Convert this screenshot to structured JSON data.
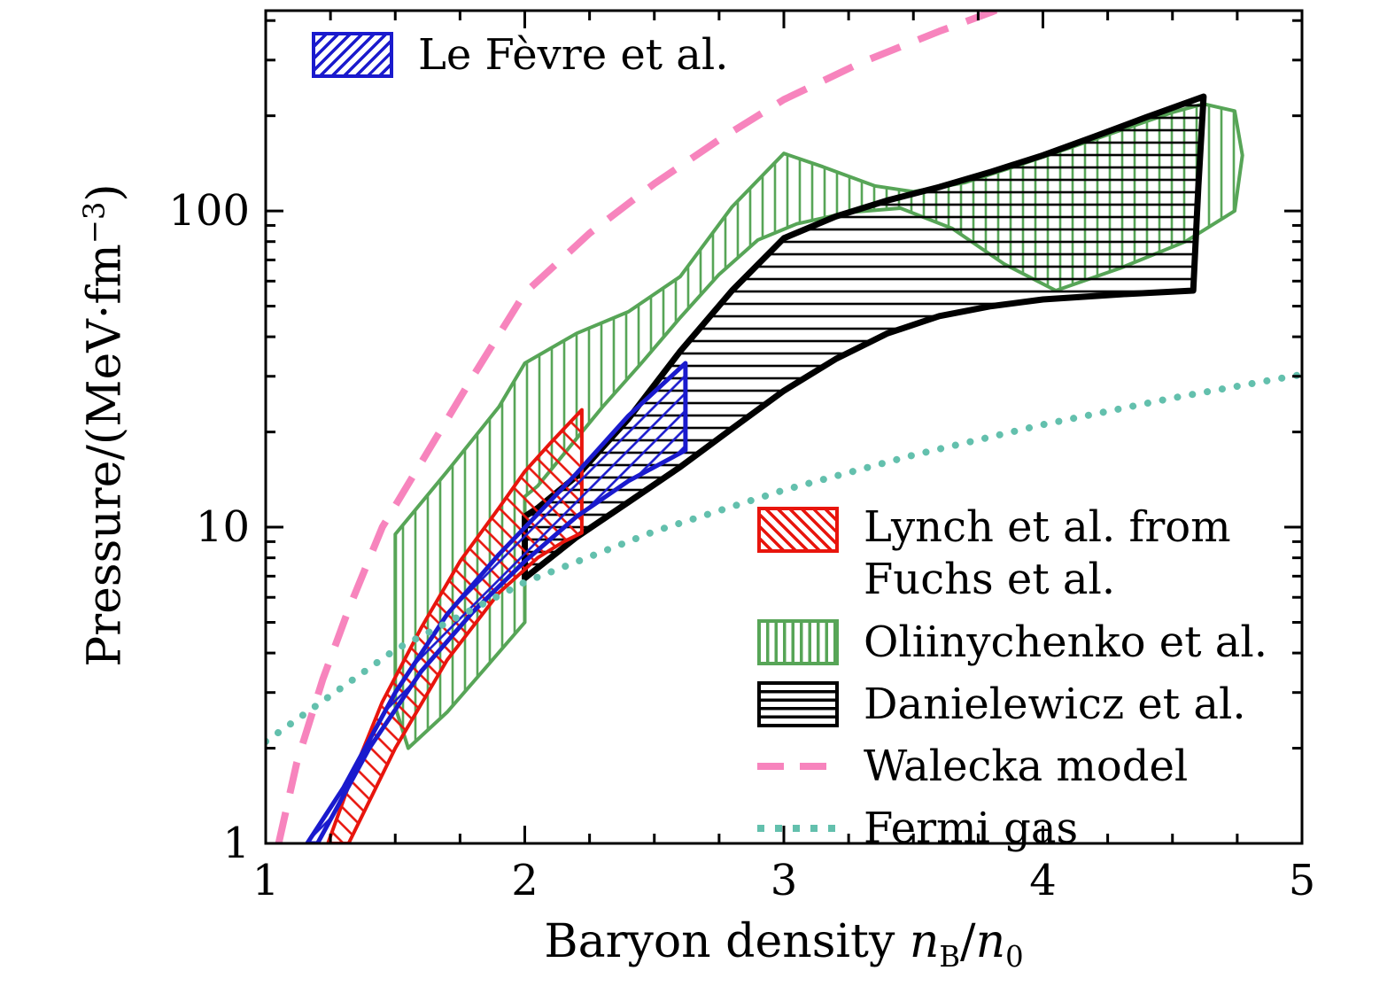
{
  "figure": {
    "background": "#ffffff"
  },
  "axes": {
    "x": {
      "label_parts": {
        "prefix": "Baryon density ",
        "v1": "n",
        "s1": "B",
        "sep": "/",
        "v2": "n",
        "s2": "0"
      },
      "min": 1,
      "max": 5,
      "major_ticks": [
        1,
        2,
        3,
        4,
        5
      ],
      "minor_step": 0.25
    },
    "y": {
      "label_parts": {
        "prefix": "Pressure/(MeV·fm",
        "sup": "−3",
        "suffix": ")"
      },
      "min": 1,
      "max": 430,
      "scale": "log",
      "major_ticks": [
        1,
        10,
        100
      ]
    }
  },
  "chart_data": {
    "type": "area",
    "title": "",
    "xlabel": "Baryon density nB/n0",
    "ylabel": "Pressure/(MeV·fm−3)",
    "x_range": [
      1,
      5
    ],
    "y_range": [
      1,
      430
    ],
    "y_scale": "log",
    "grid": false,
    "legend_position": "inside right-middle and top-left",
    "bands": [
      {
        "key": "oliinychenko",
        "name": "Oliinychenko et al.",
        "color": "#57a557",
        "hatch": "vertical",
        "stroke_width": 4,
        "polygon": [
          [
            1.5,
            9.5
          ],
          [
            1.7,
            15
          ],
          [
            1.9,
            24
          ],
          [
            2.0,
            33
          ],
          [
            2.2,
            41
          ],
          [
            2.4,
            48
          ],
          [
            2.6,
            62
          ],
          [
            2.8,
            103
          ],
          [
            3.0,
            152
          ],
          [
            3.15,
            138
          ],
          [
            3.35,
            120
          ],
          [
            3.5,
            115
          ],
          [
            3.7,
            123
          ],
          [
            3.9,
            139
          ],
          [
            4.1,
            158
          ],
          [
            4.3,
            180
          ],
          [
            4.5,
            205
          ],
          [
            4.62,
            218
          ],
          [
            4.74,
            207
          ],
          [
            4.77,
            150
          ],
          [
            4.74,
            100
          ],
          [
            4.55,
            80
          ],
          [
            4.3,
            66
          ],
          [
            4.05,
            56
          ],
          [
            3.85,
            68
          ],
          [
            3.65,
            88
          ],
          [
            3.45,
            102
          ],
          [
            3.25,
            99
          ],
          [
            3.05,
            91
          ],
          [
            2.9,
            81
          ],
          [
            2.75,
            63
          ],
          [
            2.6,
            46
          ],
          [
            2.45,
            33
          ],
          [
            2.3,
            24
          ],
          [
            2.15,
            17
          ],
          [
            2.05,
            13.5
          ],
          [
            2.0,
            12.5
          ],
          [
            2.0,
            5.0
          ],
          [
            1.85,
            3.6
          ],
          [
            1.7,
            2.6
          ],
          [
            1.55,
            2.0
          ],
          [
            1.5,
            2.7
          ]
        ]
      },
      {
        "key": "danielewicz",
        "name": "Danielewicz et al.",
        "color": "#000000",
        "hatch": "horizontal",
        "stroke_width": 7,
        "polygon": [
          [
            2.0,
            6.9
          ],
          [
            2.2,
            9.3
          ],
          [
            2.4,
            12
          ],
          [
            2.6,
            15.5
          ],
          [
            2.8,
            20.5
          ],
          [
            3.0,
            27
          ],
          [
            3.2,
            34
          ],
          [
            3.4,
            41
          ],
          [
            3.6,
            46.5
          ],
          [
            3.8,
            50
          ],
          [
            4.0,
            52.5
          ],
          [
            4.3,
            54.5
          ],
          [
            4.58,
            56
          ],
          [
            4.6,
            120
          ],
          [
            4.62,
            230
          ],
          [
            4.4,
            198
          ],
          [
            4.2,
            172
          ],
          [
            4.0,
            150
          ],
          [
            3.8,
            133
          ],
          [
            3.6,
            119
          ],
          [
            3.4,
            108
          ],
          [
            3.2,
            96
          ],
          [
            3.0,
            82
          ],
          [
            2.8,
            56
          ],
          [
            2.6,
            36
          ],
          [
            2.4,
            22
          ],
          [
            2.2,
            14.5
          ],
          [
            2.05,
            11.5
          ],
          [
            2.0,
            10.8
          ]
        ]
      },
      {
        "key": "lynch",
        "name": "Lynch et al. from Fuchs et al.",
        "color": "#e8150d",
        "hatch": "diagonal-down",
        "stroke_width": 4,
        "polygon": [
          [
            1.32,
            1.0
          ],
          [
            1.5,
            2.0
          ],
          [
            1.7,
            3.8
          ],
          [
            1.9,
            6.2
          ],
          [
            2.05,
            8.0
          ],
          [
            2.15,
            9.0
          ],
          [
            2.22,
            9.6
          ],
          [
            2.22,
            23.5
          ],
          [
            2.1,
            18.5
          ],
          [
            2.0,
            15.0
          ],
          [
            1.9,
            11.5
          ],
          [
            1.75,
            7.8
          ],
          [
            1.6,
            4.8
          ],
          [
            1.45,
            2.8
          ],
          [
            1.33,
            1.6
          ],
          [
            1.24,
            1.0
          ]
        ]
      },
      {
        "key": "lefevre",
        "name": "Le Fèvre et al.",
        "color": "#1a1acd",
        "hatch": "diagonal-up",
        "stroke_width": 5,
        "polygon": [
          [
            1.2,
            1.0
          ],
          [
            1.4,
            2.0
          ],
          [
            1.6,
            3.5
          ],
          [
            1.8,
            5.4
          ],
          [
            2.0,
            7.8
          ],
          [
            2.2,
            10.8
          ],
          [
            2.4,
            14.0
          ],
          [
            2.62,
            17.5
          ],
          [
            2.62,
            33
          ],
          [
            2.4,
            22.5
          ],
          [
            2.2,
            14.8
          ],
          [
            2.05,
            11.0
          ],
          [
            1.9,
            8.2
          ],
          [
            1.7,
            5.3
          ],
          [
            1.5,
            3.0
          ],
          [
            1.3,
            1.5
          ],
          [
            1.16,
            1.0
          ]
        ]
      }
    ],
    "lines": [
      {
        "key": "walecka",
        "name": "Walecka model",
        "color": "#f784bd",
        "style": "dashed",
        "points": [
          [
            1.05,
            1.0
          ],
          [
            1.12,
            1.8
          ],
          [
            1.22,
            3.3
          ],
          [
            1.32,
            5.5
          ],
          [
            1.45,
            10
          ],
          [
            1.6,
            16
          ],
          [
            1.8,
            30
          ],
          [
            2.0,
            55
          ],
          [
            2.25,
            85
          ],
          [
            2.5,
            122
          ],
          [
            2.75,
            168
          ],
          [
            3.0,
            225
          ],
          [
            3.3,
            295
          ],
          [
            3.6,
            370
          ],
          [
            3.8,
            425
          ],
          [
            3.9,
            460
          ]
        ]
      },
      {
        "key": "fermi",
        "name": "Fermi gas",
        "color": "#63c0ad",
        "style": "dotted",
        "points": [
          [
            1.0,
            2.1
          ],
          [
            1.5,
            4.1
          ],
          [
            2.0,
            6.7
          ],
          [
            2.5,
            9.7
          ],
          [
            3.0,
            13.1
          ],
          [
            3.5,
            16.9
          ],
          [
            4.0,
            21.1
          ],
          [
            4.5,
            25.6
          ],
          [
            5.0,
            30.4
          ]
        ]
      }
    ]
  },
  "legend_top": {
    "label": "Le Fèvre et al."
  },
  "legend_main": {
    "lynch_line1": "Lynch et al. from",
    "lynch_line2": "Fuchs et al.",
    "oliinychenko": "Oliinychenko et al.",
    "danielewicz": "Danielewicz et al.",
    "walecka": "Walecka model",
    "fermi": "Fermi gas"
  }
}
